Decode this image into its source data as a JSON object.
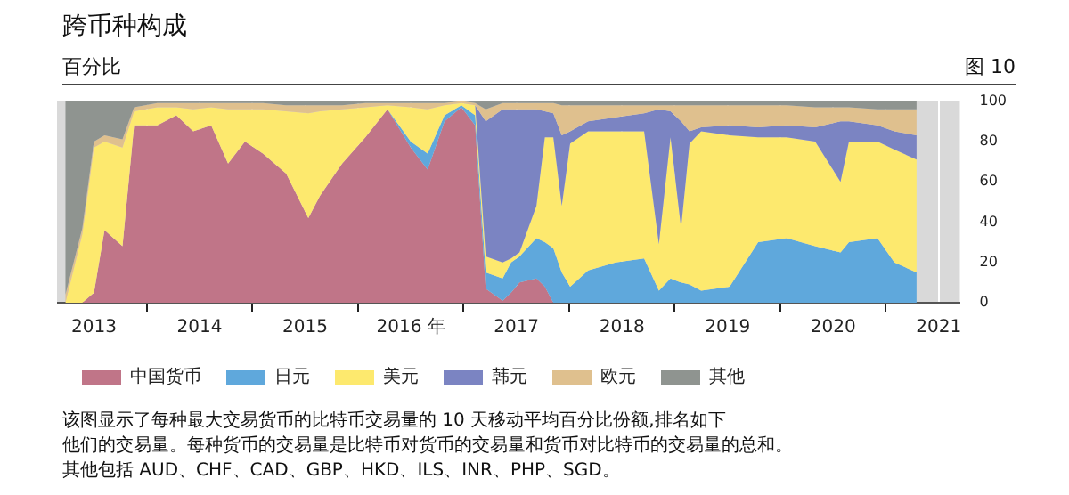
{
  "chart_data": {
    "type": "area",
    "title": "跨币种构成",
    "subtitle": "百分比",
    "annotations": [
      "图 10",
      "该图显示了每种最大交易货币的比特币交易量的 10 天移动平均百分比份额,排名如下",
      "他们的交易量。每种货币的交易量是比特币对货币的交易量和货币对比特币的交易量的总和。",
      "其他包括 AUD、CHF、CAD、GBP、HKD、ILS、INR、PHP、SGD。"
    ],
    "x": [
      2012.73,
      2012.89,
      2013.0,
      2013.1,
      2013.27,
      2013.38,
      2013.6,
      2013.78,
      2013.94,
      2014.11,
      2014.27,
      2014.43,
      2014.6,
      2014.82,
      2015.03,
      2015.14,
      2015.35,
      2015.57,
      2015.78,
      2016.0,
      2016.16,
      2016.32,
      2016.48,
      2016.61,
      2016.71,
      2016.87,
      2016.95,
      2017.03,
      2017.19,
      2017.27,
      2017.35,
      2017.43,
      2017.51,
      2017.68,
      2017.94,
      2018.21,
      2018.35,
      2018.46,
      2018.56,
      2018.64,
      2018.75,
      2019.02,
      2019.29,
      2019.56,
      2019.83,
      2020.07,
      2020.15,
      2020.42,
      2020.58,
      2020.79
    ],
    "series": [
      {
        "name": "中国货币",
        "color": "#c07588",
        "values": [
          0,
          0,
          5,
          36,
          28,
          88,
          88,
          93,
          85,
          88,
          69,
          80,
          74,
          64,
          42,
          53,
          69,
          82,
          96,
          77,
          66,
          90,
          97,
          88,
          7,
          1,
          5,
          10,
          12,
          8,
          0,
          0,
          0,
          0,
          0,
          0,
          0,
          0,
          0,
          0,
          0,
          0,
          0,
          0,
          0,
          0,
          0,
          0,
          0,
          0
        ]
      },
      {
        "name": "日元",
        "color": "#5fa8dc",
        "values": [
          0,
          0,
          0,
          0,
          0,
          0,
          0,
          0,
          0,
          0,
          0,
          0,
          0,
          0,
          0,
          0,
          0,
          0,
          0,
          3,
          8,
          3,
          1,
          5,
          8,
          11,
          15,
          13,
          20,
          22,
          27,
          15,
          8,
          16,
          20,
          22,
          6,
          12,
          10,
          9,
          6,
          8,
          30,
          32,
          28,
          25,
          30,
          32,
          20,
          15
        ]
      },
      {
        "name": "美元",
        "color": "#fde96e",
        "values": [
          0,
          34,
          72,
          44,
          49,
          7,
          9,
          4,
          11,
          9,
          27,
          16,
          22,
          31,
          52,
          42,
          27,
          15,
          2,
          17,
          22,
          5,
          1,
          5,
          8,
          8,
          2,
          2,
          16,
          52,
          55,
          33,
          71,
          69,
          65,
          63,
          23,
          70,
          27,
          70,
          79,
          75,
          52,
          50,
          52,
          35,
          50,
          48,
          56,
          56
        ]
      },
      {
        "name": "韩元",
        "color": "#7b84c2",
        "values": [
          null,
          null,
          null,
          null,
          null,
          null,
          null,
          null,
          null,
          null,
          null,
          null,
          null,
          null,
          null,
          null,
          null,
          null,
          null,
          null,
          null,
          null,
          null,
          0,
          67,
          76,
          74,
          71,
          48,
          13,
          12,
          35,
          6,
          5,
          7,
          9,
          67,
          13,
          53,
          6,
          2,
          5,
          5,
          6,
          7,
          30,
          10,
          8,
          9,
          12
        ]
      },
      {
        "name": "欧元",
        "color": "#dfc08e",
        "values": [
          4,
          3,
          3,
          3,
          4,
          2,
          2,
          2,
          3,
          2,
          3,
          3,
          3,
          3,
          4,
          3,
          2,
          2,
          1,
          2,
          3,
          1,
          1,
          1,
          6,
          3,
          3,
          3,
          3,
          4,
          5,
          15,
          13,
          8,
          6,
          4,
          2,
          3,
          8,
          13,
          11,
          10,
          11,
          10,
          10,
          7,
          7,
          8,
          11,
          13
        ]
      },
      {
        "name": "其他",
        "color": "#8f9490",
        "values": [
          96,
          63,
          20,
          17,
          19,
          3,
          1,
          1,
          1,
          1,
          1,
          1,
          1,
          2,
          2,
          2,
          2,
          1,
          1,
          1,
          1,
          1,
          0,
          1,
          4,
          1,
          1,
          1,
          1,
          1,
          1,
          2,
          2,
          2,
          2,
          2,
          2,
          2,
          2,
          2,
          2,
          2,
          2,
          2,
          3,
          3,
          3,
          4,
          4,
          4
        ]
      }
    ],
    "stacked": true,
    "xlim": [
      2012.65,
      2021.2
    ],
    "xticks": [
      {
        "value": 2013,
        "label": "2013"
      },
      {
        "value": 2013.5,
        "label": null
      },
      {
        "value": 2014,
        "label": "2014"
      },
      {
        "value": 2014.5,
        "label": null
      },
      {
        "value": 2015,
        "label": "2015"
      },
      {
        "value": 2015.5,
        "label": null
      },
      {
        "value": 2016,
        "label": "2016 年"
      },
      {
        "value": 2016.5,
        "label": null
      },
      {
        "value": 2017,
        "label": "2017"
      },
      {
        "value": 2017.5,
        "label": null
      },
      {
        "value": 2018,
        "label": "2018"
      },
      {
        "value": 2018.5,
        "label": null
      },
      {
        "value": 2019,
        "label": "2019"
      },
      {
        "value": 2019.5,
        "label": null
      },
      {
        "value": 2020,
        "label": "2020"
      },
      {
        "value": 2020.5,
        "label": null
      },
      {
        "value": 2021,
        "label": "2021"
      }
    ],
    "ylim": [
      0,
      100
    ],
    "yticks": [
      0,
      20,
      40,
      60,
      80,
      100
    ],
    "grid": "x",
    "legend": "bottom"
  }
}
